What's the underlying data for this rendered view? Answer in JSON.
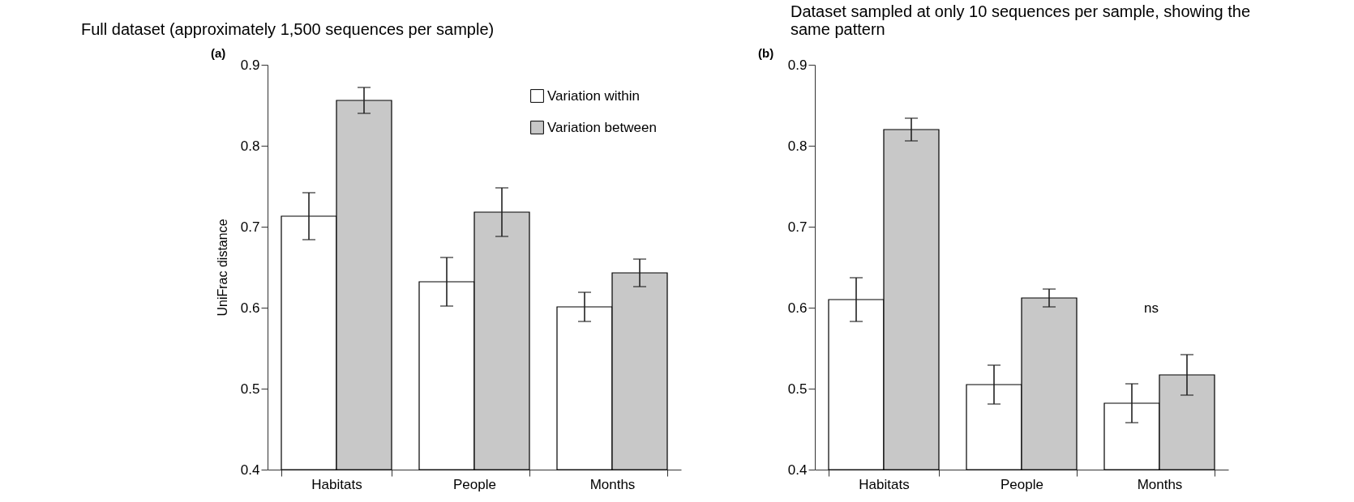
{
  "chart_data": [
    {
      "type": "bar",
      "title": "Full dataset (approximately 1,500 sequences per sample)",
      "ylabel": "UniFrac distance",
      "categories": [
        "Habitats",
        "People",
        "Months"
      ],
      "series": [
        {
          "name": "Variation within",
          "color": "#ffffff",
          "values": [
            0.713,
            0.632,
            0.601
          ],
          "errors": [
            0.029,
            0.03,
            0.018
          ]
        },
        {
          "name": "Variation between",
          "color": "#c8c8c8",
          "values": [
            0.856,
            0.718,
            0.643
          ],
          "errors": [
            0.016,
            0.03,
            0.017
          ]
        }
      ],
      "ylim": [
        0.4,
        0.9
      ],
      "yticks": [
        0.4,
        0.5,
        0.6,
        0.7,
        0.8,
        0.9
      ],
      "grid": false,
      "legend": "top right",
      "annotations": [
        "(a)"
      ]
    },
    {
      "type": "bar",
      "title": "Dataset sampled at only 10 sequences per sample, showing the same pattern",
      "categories": [
        "Habitats",
        "People",
        "Months"
      ],
      "series": [
        {
          "color": "#ffffff",
          "values": [
            0.61,
            0.505,
            0.482
          ],
          "errors": [
            0.027,
            0.024,
            0.024
          ]
        },
        {
          "color": "#c8c8c8",
          "values": [
            0.82,
            0.612,
            0.517
          ],
          "errors": [
            0.014,
            0.011,
            0.025
          ]
        }
      ],
      "ylim": [
        0.4,
        0.9
      ],
      "yticks": [
        0.4,
        0.5,
        0.6,
        0.7,
        0.8,
        0.9
      ],
      "grid": false,
      "annotations": [
        "(b)",
        "ns"
      ]
    }
  ]
}
